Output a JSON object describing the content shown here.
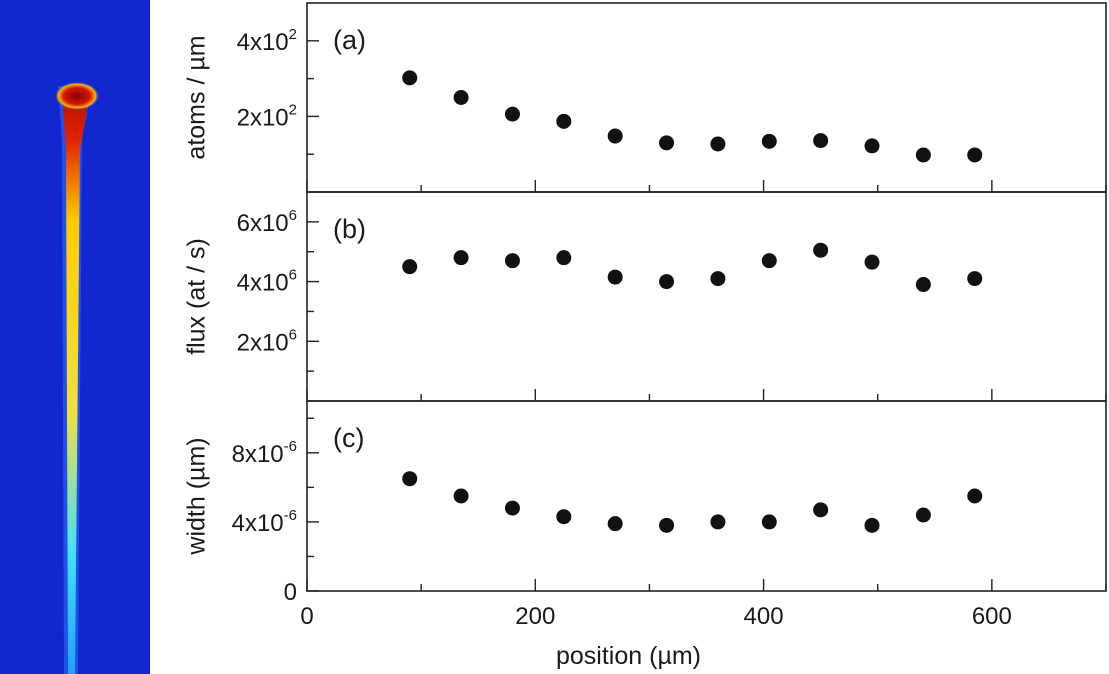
{
  "colors": {
    "beam_background": "#0f22c8",
    "marker": "#111111"
  },
  "beam_image": {
    "icon": "atom-laser-beam-absorption-image"
  },
  "chart_data": [
    {
      "type": "scatter",
      "panel_label": "(a)",
      "ylabel": "atoms / µm",
      "ylim": [
        0,
        500
      ],
      "yticks": [
        {
          "value": 200,
          "label": "2x10",
          "exp": "2"
        },
        {
          "value": 400,
          "label": "4x10",
          "exp": "2"
        }
      ],
      "yminor": [
        100,
        300
      ],
      "x": [
        90,
        135,
        180,
        225,
        270,
        315,
        360,
        405,
        450,
        495,
        540,
        585
      ],
      "y": [
        302,
        250,
        206,
        187,
        148,
        130,
        127,
        134,
        136,
        122,
        98,
        98
      ]
    },
    {
      "type": "scatter",
      "panel_label": "(b)",
      "ylabel": "flux (at / s)",
      "ylim": [
        0,
        7000000
      ],
      "yticks": [
        {
          "value": 2000000,
          "label": "2x10",
          "exp": "6"
        },
        {
          "value": 4000000,
          "label": "4x10",
          "exp": "6"
        },
        {
          "value": 6000000,
          "label": "6x10",
          "exp": "6"
        }
      ],
      "yminor": [
        1000000,
        3000000,
        5000000
      ],
      "x": [
        90,
        135,
        180,
        225,
        270,
        315,
        360,
        405,
        450,
        495,
        540,
        585
      ],
      "y": [
        4500000,
        4800000,
        4700000,
        4800000,
        4150000,
        4000000,
        4100000,
        4700000,
        5050000,
        4650000,
        3900000,
        4100000
      ]
    },
    {
      "type": "scatter",
      "panel_label": "(c)",
      "ylabel": "width (µm)",
      "ylim": [
        0,
        1.1e-05
      ],
      "yticks": [
        {
          "value": 0,
          "label": "0",
          "exp": ""
        },
        {
          "value": 4e-06,
          "label": "4x10",
          "exp": "-6"
        },
        {
          "value": 8e-06,
          "label": "8x10",
          "exp": "-6"
        }
      ],
      "yminor": [
        2e-06,
        6e-06,
        1e-05
      ],
      "x": [
        90,
        135,
        180,
        225,
        270,
        315,
        360,
        405,
        450,
        495,
        540,
        585
      ],
      "y": [
        6.5e-06,
        5.5e-06,
        4.8e-06,
        4.3e-06,
        3.9e-06,
        3.8e-06,
        4e-06,
        4e-06,
        4.7e-06,
        3.8e-06,
        4.4e-06,
        5.5e-06
      ]
    }
  ],
  "xaxis": {
    "xlabel": "position (µm)",
    "xlim": [
      0,
      700
    ],
    "ticks": [
      {
        "value": 0,
        "label": "0"
      },
      {
        "value": 200,
        "label": "200"
      },
      {
        "value": 400,
        "label": "400"
      },
      {
        "value": 600,
        "label": "600"
      }
    ],
    "minor": [
      100,
      300,
      500,
      700
    ]
  }
}
